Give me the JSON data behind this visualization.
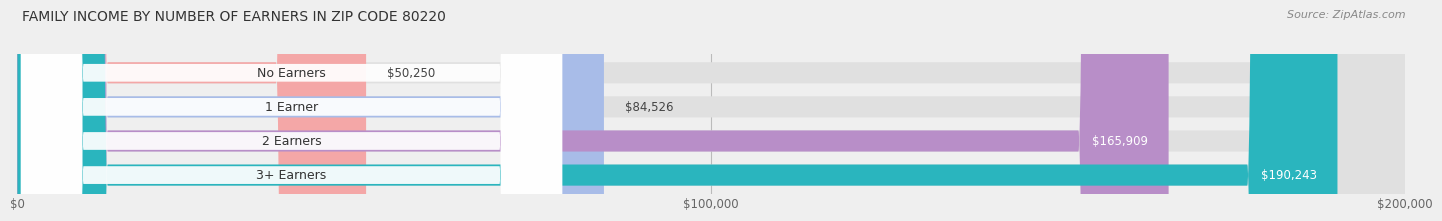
{
  "title": "FAMILY INCOME BY NUMBER OF EARNERS IN ZIP CODE 80220",
  "source": "Source: ZipAtlas.com",
  "categories": [
    "No Earners",
    "1 Earner",
    "2 Earners",
    "3+ Earners"
  ],
  "values": [
    50250,
    84526,
    165909,
    190243
  ],
  "bar_colors": [
    "#f4a7a7",
    "#a8bce8",
    "#b88ec8",
    "#2ab5be"
  ],
  "value_label_inside": [
    false,
    false,
    true,
    true
  ],
  "max_value": 200000,
  "x_ticks": [
    0,
    100000,
    200000
  ],
  "x_tick_labels": [
    "$0",
    "$100,000",
    "$200,000"
  ],
  "background_color": "#efefef",
  "bar_bg_color": "#e0e0e0",
  "title_fontsize": 10,
  "source_fontsize": 8,
  "label_fontsize": 8.5,
  "tick_fontsize": 8.5,
  "category_fontsize": 9
}
